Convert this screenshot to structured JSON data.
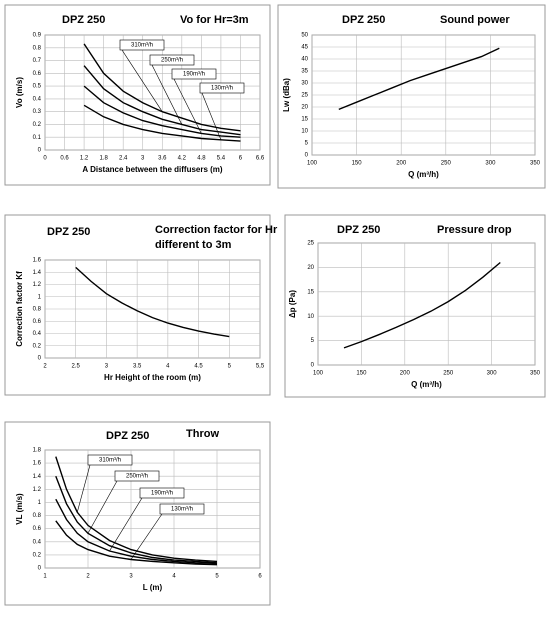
{
  "chart_data": [
    {
      "type": "line",
      "title": "DPZ 250",
      "subtitle": [
        "Vo for Hr=3m"
      ],
      "x_label": "A Distance between the diffusers (m)",
      "y_label": "Vo (m/s)",
      "x": [
        1.2,
        1.8,
        2.4,
        3,
        3.6,
        4.2,
        4.8,
        5.4,
        6
      ],
      "series": [
        {
          "name": "310m³/h",
          "color": "#000000",
          "values": [
            0.83,
            0.6,
            0.46,
            0.37,
            0.3,
            0.25,
            0.2,
            0.17,
            0.15
          ]
        },
        {
          "name": "250m³/h",
          "color": "#000000",
          "values": [
            0.66,
            0.48,
            0.37,
            0.3,
            0.24,
            0.2,
            0.16,
            0.14,
            0.12
          ]
        },
        {
          "name": "190m³/h",
          "color": "#000000",
          "values": [
            0.5,
            0.37,
            0.29,
            0.23,
            0.19,
            0.16,
            0.13,
            0.11,
            0.1
          ]
        },
        {
          "name": "130m³/h",
          "color": "#000000",
          "values": [
            0.35,
            0.26,
            0.2,
            0.16,
            0.13,
            0.11,
            0.09,
            0.08,
            0.07
          ]
        }
      ],
      "xlim": [
        0,
        6.6
      ],
      "xticks": [
        0,
        0.6,
        1.2,
        1.8,
        2.4,
        3,
        3.6,
        4.2,
        4.8,
        5.4,
        6,
        6.6
      ],
      "ylim": [
        0,
        0.9
      ],
      "yticks": [
        0,
        0.1,
        0.2,
        0.3,
        0.4,
        0.5,
        0.6,
        0.7,
        0.8,
        0.9
      ],
      "grid": true
    },
    {
      "type": "line",
      "title": "DPZ 250",
      "subtitle": [
        "Sound power"
      ],
      "x_label": "Q (m³/h)",
      "y_label": "Lw (dBa)",
      "color": "#000000",
      "x": [
        130,
        150,
        170,
        190,
        210,
        230,
        250,
        270,
        290,
        310
      ],
      "values": [
        19,
        22,
        25,
        28,
        31,
        33.5,
        36,
        38.5,
        41,
        44.5
      ],
      "xlim": [
        100,
        350
      ],
      "xticks": [
        100,
        150,
        200,
        250,
        300,
        350
      ],
      "ylim": [
        0,
        50
      ],
      "yticks": [
        0,
        5,
        10,
        15,
        20,
        25,
        30,
        35,
        40,
        45,
        50
      ],
      "grid": true
    },
    {
      "type": "line",
      "title": "DPZ 250",
      "subtitle": [
        "Correction factor for Hr",
        "different to 3m"
      ],
      "x_label": "Hr Height of the room (m)",
      "y_label": "Correction factor Kf",
      "color": "#000000",
      "x": [
        2.5,
        2.75,
        3,
        3.25,
        3.5,
        3.75,
        4,
        4.25,
        4.5,
        4.75,
        5
      ],
      "values": [
        1.48,
        1.25,
        1.05,
        0.9,
        0.77,
        0.66,
        0.57,
        0.5,
        0.44,
        0.39,
        0.35
      ],
      "xlim": [
        2,
        5.5
      ],
      "xticks": [
        2,
        2.5,
        3,
        3.5,
        4,
        4.5,
        5,
        {
          "value": 5.5,
          "label": "5,5"
        }
      ],
      "ylim": [
        0,
        1.6
      ],
      "yticks": [
        0,
        0.2,
        0.4,
        0.6,
        0.8,
        1,
        1.2,
        1.4,
        1.6
      ],
      "grid": true
    },
    {
      "type": "line",
      "title": "DPZ 250",
      "subtitle": [
        "Pressure drop"
      ],
      "x_label": "Q (m³/h)",
      "y_label": "Δp (Pa)",
      "color": "#000000",
      "x": [
        130,
        150,
        170,
        190,
        210,
        230,
        250,
        270,
        290,
        310
      ],
      "values": [
        3.5,
        4.8,
        6.2,
        7.7,
        9.3,
        11,
        13,
        15.3,
        18,
        21
      ],
      "xlim": [
        100,
        350
      ],
      "xticks": [
        100,
        150,
        200,
        250,
        300,
        350
      ],
      "ylim": [
        0,
        25
      ],
      "yticks": [
        0,
        5,
        10,
        15,
        20,
        25
      ],
      "grid": true
    },
    {
      "type": "line",
      "title": "DPZ 250",
      "subtitle": [
        "Throw"
      ],
      "x_label": "L (m)",
      "y_label": "VL (m/s)",
      "x": [
        1.25,
        1.5,
        1.75,
        2,
        2.5,
        3,
        3.5,
        4,
        4.5,
        5
      ],
      "series": [
        {
          "name": "310m³/h",
          "color": "#000000",
          "values": [
            1.7,
            1.2,
            0.85,
            0.65,
            0.42,
            0.28,
            0.2,
            0.15,
            0.12,
            0.1
          ]
        },
        {
          "name": "250m³/h",
          "color": "#000000",
          "values": [
            1.4,
            0.98,
            0.7,
            0.53,
            0.34,
            0.23,
            0.16,
            0.12,
            0.1,
            0.08
          ]
        },
        {
          "name": "190m³/h",
          "color": "#000000",
          "values": [
            1.05,
            0.74,
            0.53,
            0.4,
            0.26,
            0.18,
            0.13,
            0.1,
            0.08,
            0.07
          ]
        },
        {
          "name": "130m³/h",
          "color": "#000000",
          "values": [
            0.72,
            0.5,
            0.36,
            0.28,
            0.18,
            0.13,
            0.1,
            0.08,
            0.06,
            0.05
          ]
        }
      ],
      "xlim": [
        1,
        6
      ],
      "xticks": [
        1,
        2,
        3,
        4,
        5,
        6
      ],
      "ylim": [
        0,
        1.8
      ],
      "yticks": [
        0,
        0.2,
        0.4,
        0.6,
        0.8,
        1,
        1.2,
        1.4,
        1.6,
        1.8
      ],
      "grid": true
    }
  ]
}
